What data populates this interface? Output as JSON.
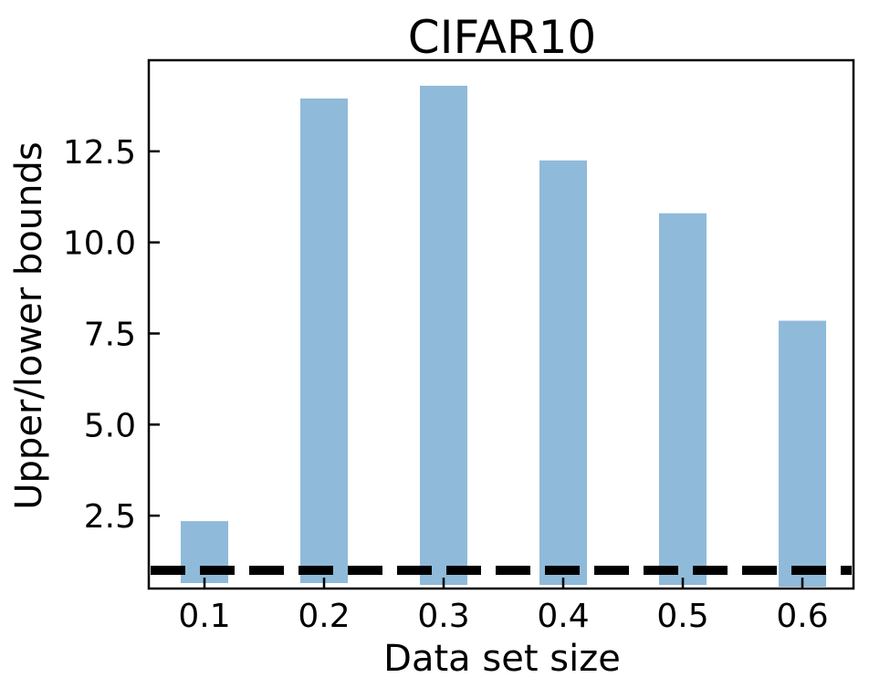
{
  "chart_data": {
    "type": "bar",
    "title": "CIFAR10",
    "xlabel": "Data set size",
    "ylabel": "Upper/lower bounds",
    "categories": [
      "0.1",
      "0.2",
      "0.3",
      "0.4",
      "0.5",
      "0.6"
    ],
    "series": [
      {
        "bottoms": [
          0.65,
          0.65,
          0.6,
          0.6,
          0.6,
          0.55
        ],
        "tops": [
          2.35,
          13.95,
          14.3,
          12.25,
          10.8,
          7.85
        ]
      }
    ],
    "reference_line": {
      "y": 1.0,
      "style": "dashed",
      "color": "#000000"
    },
    "ylim": [
      0.5,
      15.0
    ],
    "yticks": [
      2.5,
      5.0,
      7.5,
      10.0,
      12.5
    ],
    "ytick_labels": [
      "2.5",
      "5.0",
      "7.5",
      "10.0",
      "12.5"
    ],
    "grid": false,
    "legend": "none",
    "bar_color": "#8fbad9"
  }
}
